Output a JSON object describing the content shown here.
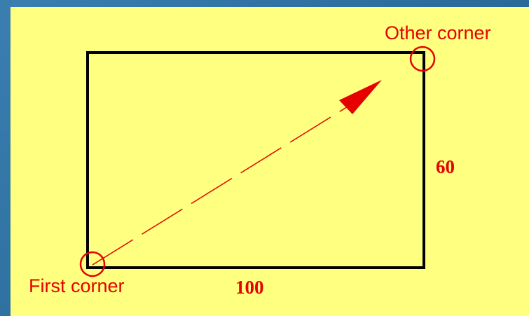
{
  "labels": {
    "other_corner": "Other corner",
    "first_corner": "First corner",
    "height_value": "60",
    "width_value": "100"
  },
  "colors": {
    "background_frame": "#2f6b9a",
    "panel": "#ffff80",
    "rectangle_stroke": "#000000",
    "accent_red": "#e60000"
  },
  "icons": {
    "first_corner_marker": "circle-marker-icon",
    "other_corner_marker": "circle-marker-icon",
    "direction": "dashed-arrow-icon"
  }
}
